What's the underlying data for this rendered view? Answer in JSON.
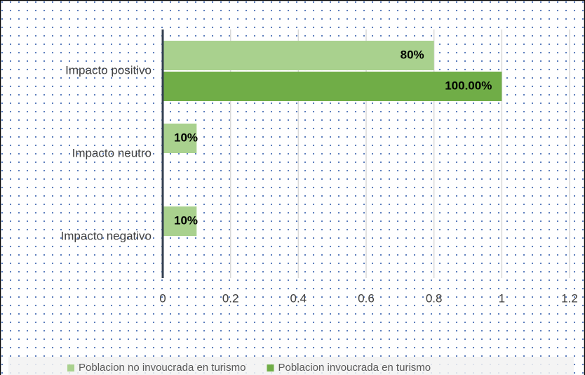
{
  "chart_data": {
    "type": "hbar",
    "categories": [
      "Impacto positivo",
      "Impacto neutro",
      "Impacto negativo"
    ],
    "series": [
      {
        "name": "Poblacion no invoucrada en turismo",
        "color": "#a9d18e",
        "values": [
          0.8,
          0.1,
          0.1
        ],
        "value_labels": [
          "80%",
          "10%",
          "10%"
        ]
      },
      {
        "name": "Poblacion invoucrada en turismo",
        "color": "#70ad47",
        "values": [
          1,
          0,
          0
        ],
        "value_labels": [
          "100.00%",
          null,
          null
        ]
      }
    ],
    "xlim": [
      0,
      1.2
    ],
    "xticks": [
      0,
      0.2,
      0.4,
      0.6,
      0.8,
      1,
      1.2
    ],
    "grid": true,
    "legend": "bottom"
  }
}
